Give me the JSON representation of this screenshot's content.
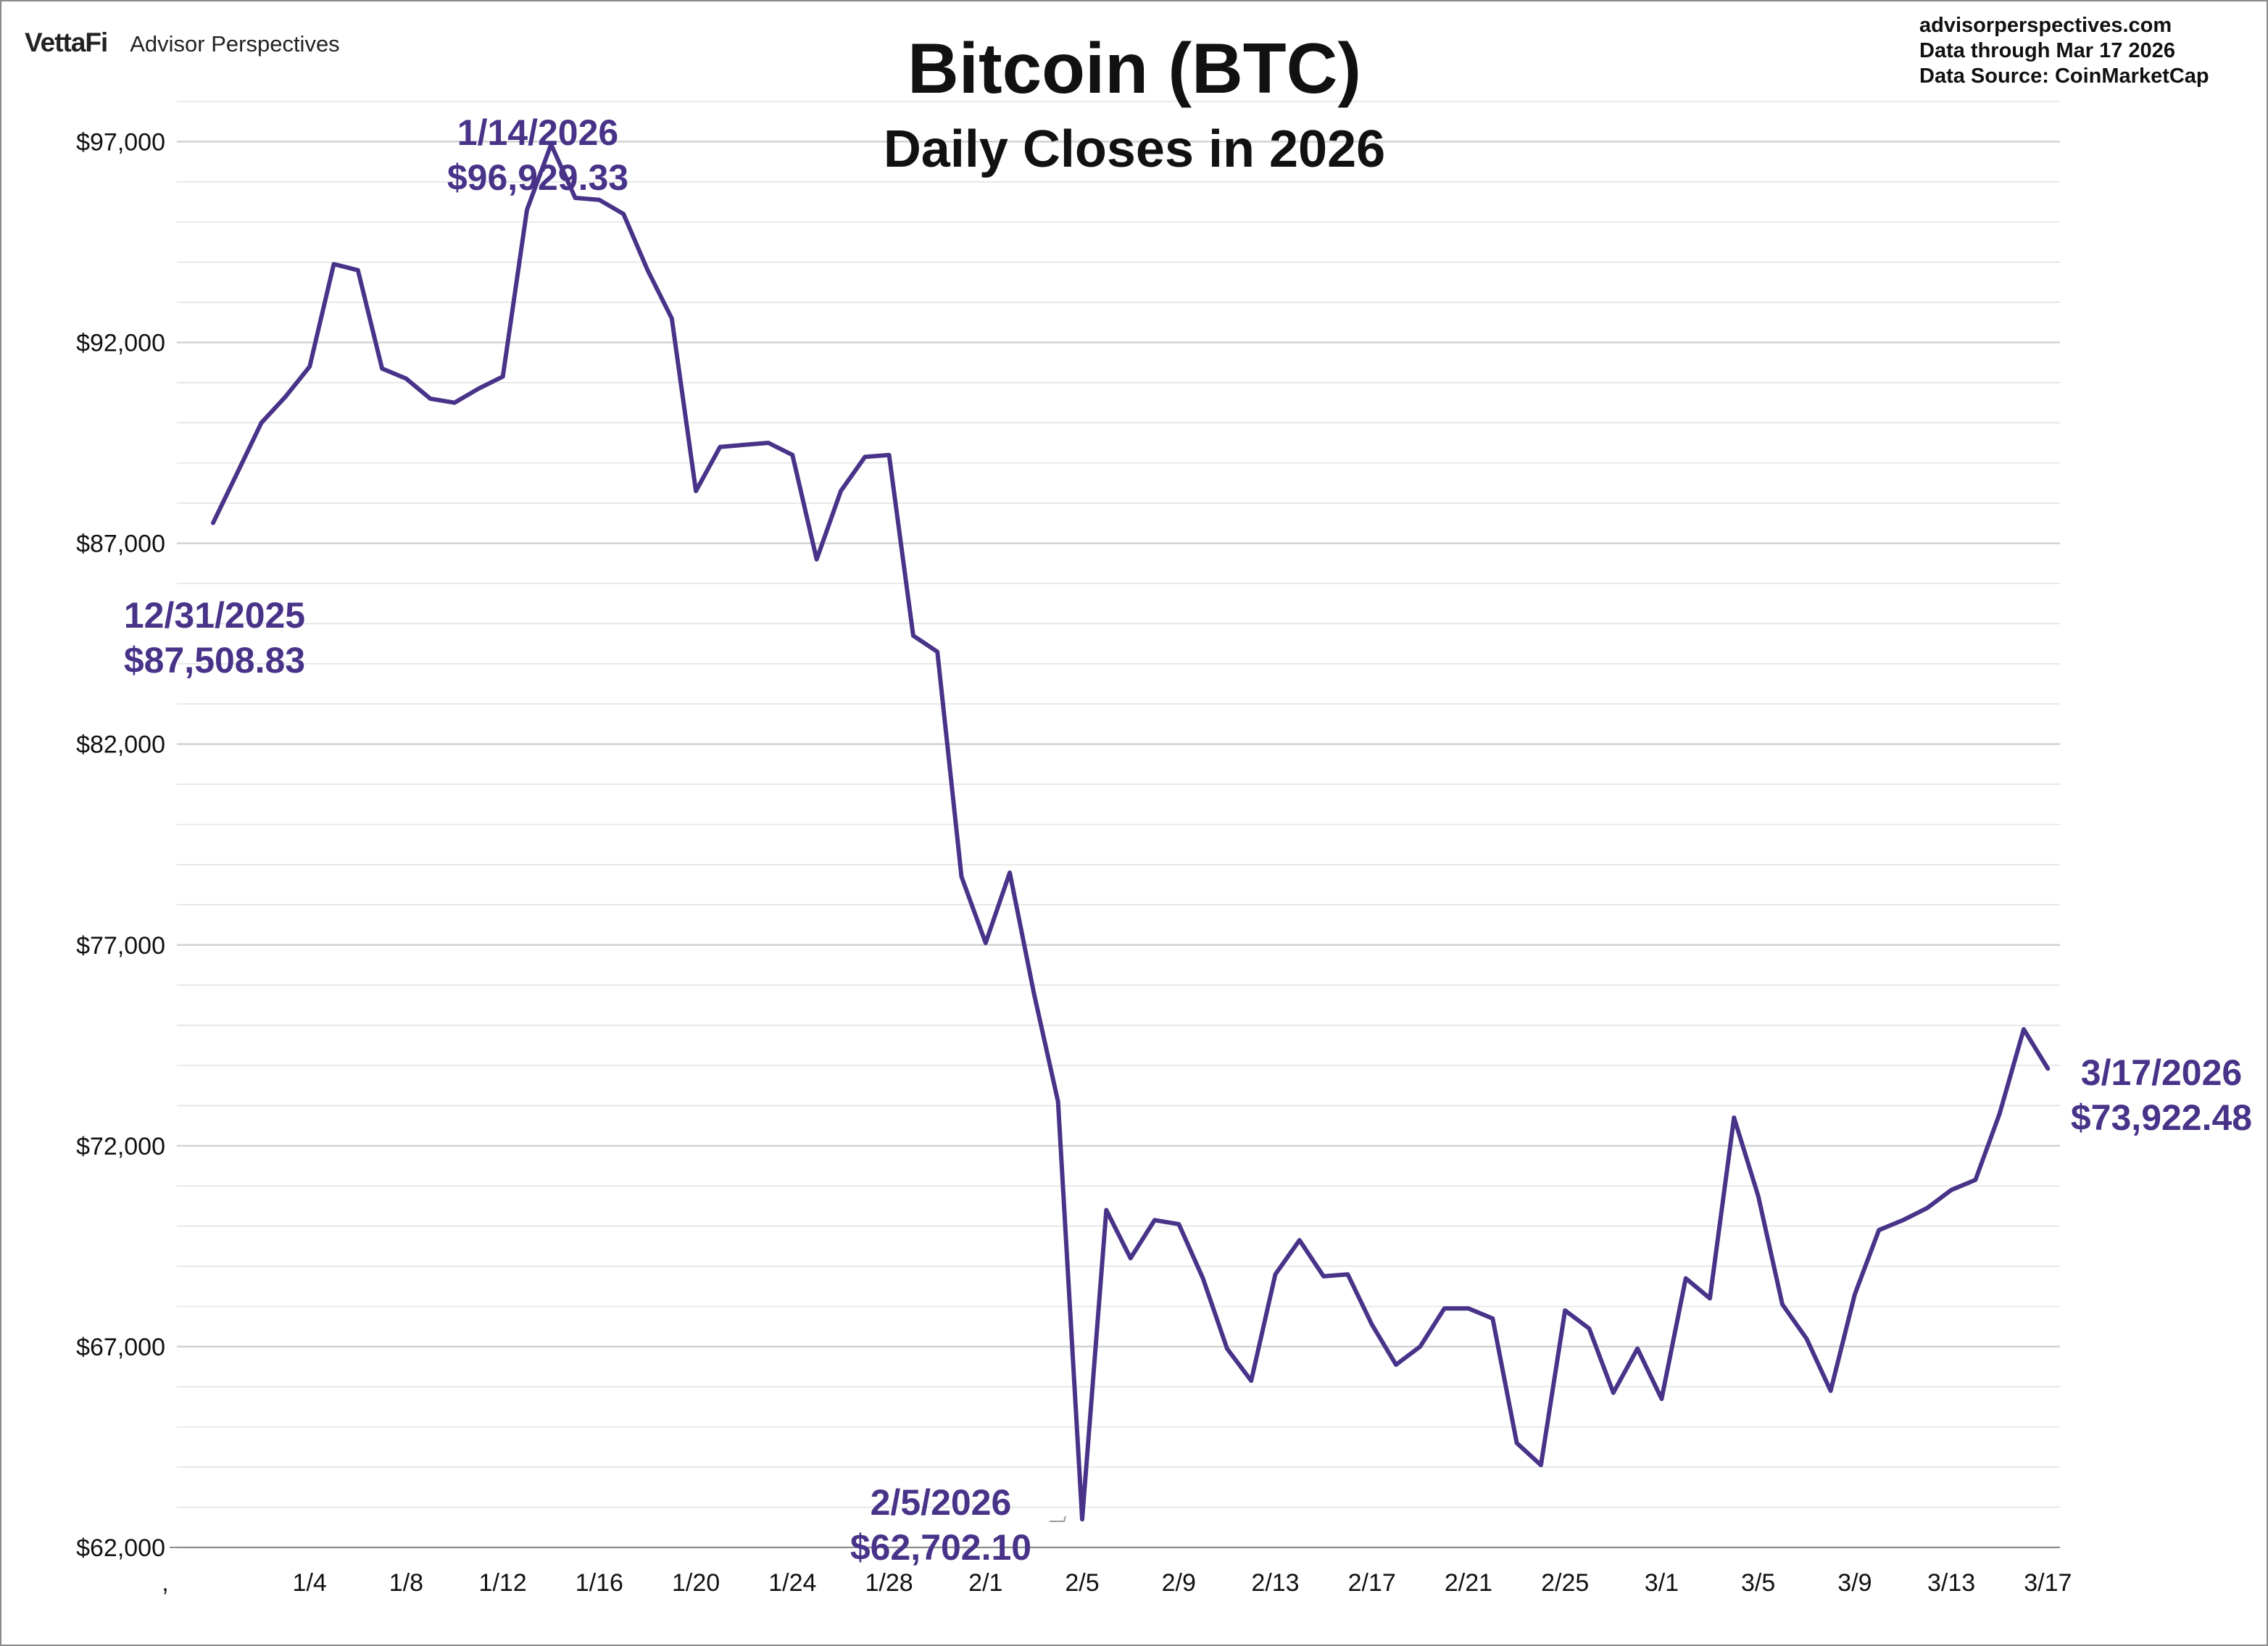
{
  "brand": {
    "logo_text": "VettaFi",
    "tagline": "Advisor Perspectives"
  },
  "source": {
    "site": "advisorperspectives.com",
    "data_through": "Data through  Mar 17 2026",
    "data_source": "Data Source:  CoinMarketCap"
  },
  "colors": {
    "series": "#483389",
    "grid": "#e3e3e3",
    "axis": "#8c8c8c",
    "text": "#111111"
  },
  "chart_data": {
    "type": "line",
    "title": "Bitcoin (BTC)",
    "subtitle": "Daily Closes in 2026",
    "xlabel": "",
    "ylabel": "",
    "ylim": [
      62000,
      98000
    ],
    "grid": true,
    "legend": "none",
    "y_ticks": [
      {
        "value": 62000,
        "label": "$62,000"
      },
      {
        "value": 67000,
        "label": "$67,000"
      },
      {
        "value": 72000,
        "label": "$72,000"
      },
      {
        "value": 77000,
        "label": "$77,000"
      },
      {
        "value": 82000,
        "label": "$82,000"
      },
      {
        "value": 87000,
        "label": "$87,000"
      },
      {
        "value": 92000,
        "label": "$92,000"
      },
      {
        "value": 97000,
        "label": "$97,000"
      }
    ],
    "x_ticks": [
      {
        "index": 0,
        "label": ","
      },
      {
        "index": 4,
        "label": "1/4"
      },
      {
        "index": 8,
        "label": "1/8"
      },
      {
        "index": 12,
        "label": "1/12"
      },
      {
        "index": 16,
        "label": "1/16"
      },
      {
        "index": 20,
        "label": "1/20"
      },
      {
        "index": 24,
        "label": "1/24"
      },
      {
        "index": 28,
        "label": "1/28"
      },
      {
        "index": 32,
        "label": "2/1"
      },
      {
        "index": 36,
        "label": "2/5"
      },
      {
        "index": 40,
        "label": "2/9"
      },
      {
        "index": 44,
        "label": "2/13"
      },
      {
        "index": 48,
        "label": "2/17"
      },
      {
        "index": 52,
        "label": "2/21"
      },
      {
        "index": 56,
        "label": "2/25"
      },
      {
        "index": 60,
        "label": "3/1"
      },
      {
        "index": 64,
        "label": "3/5"
      },
      {
        "index": 68,
        "label": "3/9"
      },
      {
        "index": 72,
        "label": "3/13"
      },
      {
        "index": 76,
        "label": "3/17"
      }
    ],
    "x_range": [
      -1.5,
      76.5
    ],
    "series": [
      {
        "name": "Bitcoin (BTC) Daily Close",
        "start_index": 0,
        "values": [
          87508.83,
          88750,
          90000,
          90650,
          91400,
          93950,
          93800,
          91350,
          91100,
          90600,
          90500,
          90850,
          91150,
          95300,
          96929.33,
          95600,
          95550,
          95200,
          93800,
          92600,
          88300,
          89400,
          89450,
          89500,
          89200,
          86600,
          88300,
          89150,
          89200,
          84700,
          84300,
          78700,
          77050,
          78800,
          75800,
          73100,
          62702.1,
          70400,
          69200,
          70150,
          70050,
          68700,
          66950,
          66150,
          68800,
          69650,
          68750,
          68800,
          67550,
          66550,
          67000,
          67950,
          67950,
          67700,
          64600,
          64050,
          67900,
          67450,
          65850,
          66950,
          65700,
          68700,
          68200,
          72700,
          70750,
          68050,
          67200,
          65900,
          68300,
          69900,
          70150,
          70450,
          70900,
          71150,
          72800,
          74900,
          73922.48
        ]
      }
    ],
    "annotations": [
      {
        "index": 0,
        "date": "12/31/2025",
        "value": "$87,508.83"
      },
      {
        "index": 14,
        "date": "1/14/2026",
        "value": "$96,929.33"
      },
      {
        "index": 36,
        "date": "2/5/2026",
        "value": "$62,702.10"
      },
      {
        "index": 76,
        "date": "3/17/2026",
        "value": "$73,922.48"
      }
    ]
  }
}
